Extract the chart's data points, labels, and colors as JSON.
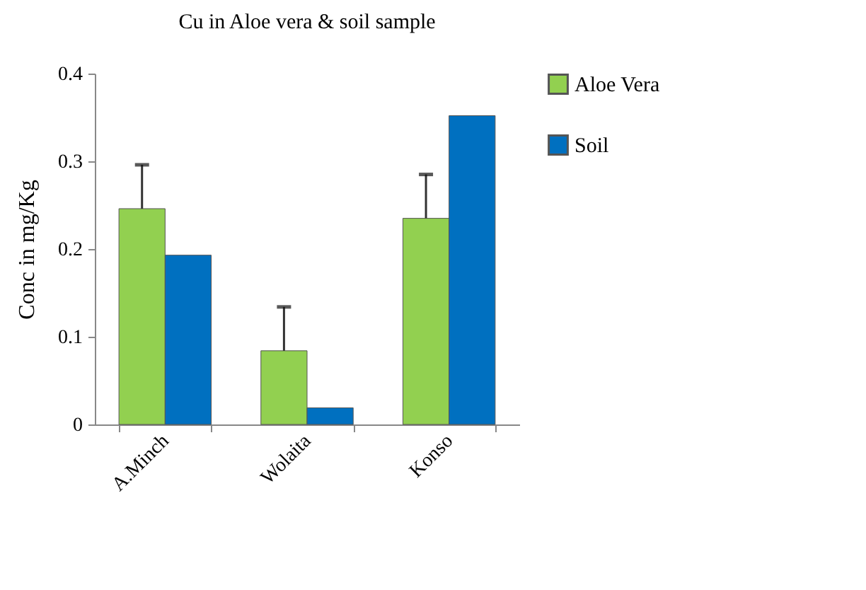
{
  "chart_data": {
    "type": "bar",
    "title": "Cu in Aloe vera & soil sample",
    "ylabel": "Conc in mg/Kg",
    "categories": [
      "A.Minch",
      "Wolaita",
      "Konso"
    ],
    "series": [
      {
        "name": "Aloe Vera",
        "color": "#92d050",
        "values": [
          0.246,
          0.084,
          0.235
        ],
        "errors": [
          [
            0.246,
            0.296
          ],
          [
            0.084,
            0.134
          ],
          [
            0.235,
            0.285
          ]
        ]
      },
      {
        "name": "Soil",
        "color": "#0070c0",
        "values": [
          0.193,
          0.019,
          0.352
        ]
      }
    ],
    "ylim": [
      0,
      0.4
    ],
    "yticks": [
      0,
      0.1,
      0.2,
      0.3,
      0.4
    ],
    "grid": false,
    "legend": "right"
  }
}
